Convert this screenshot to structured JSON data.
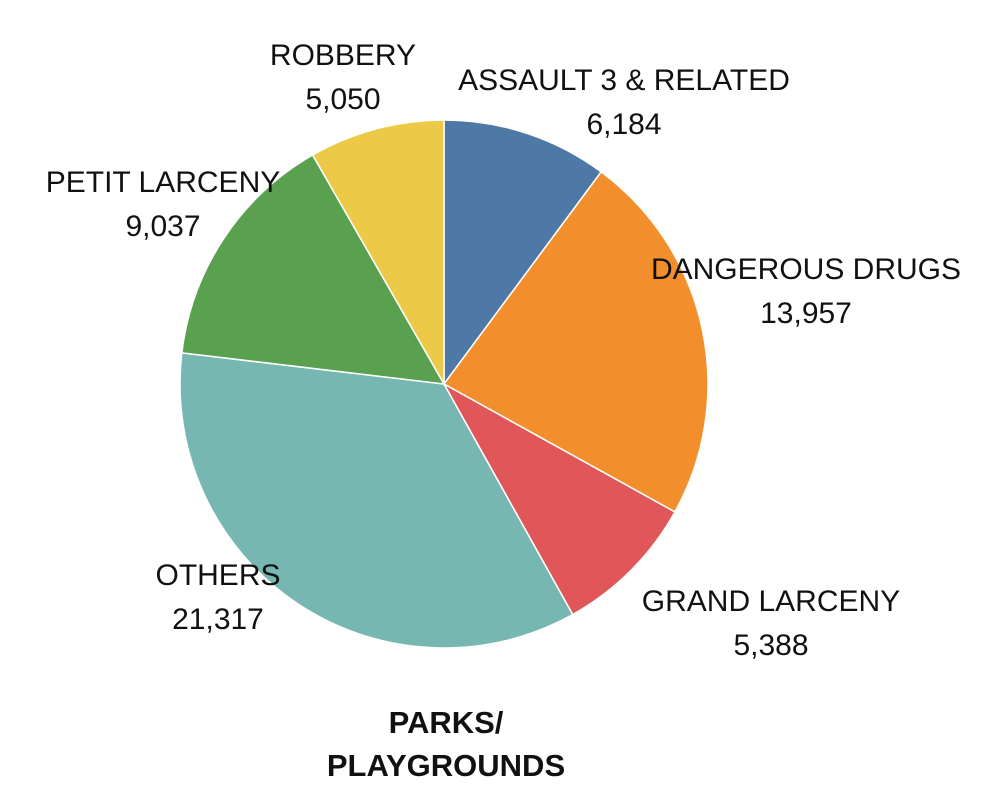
{
  "chart_data": {
    "type": "pie",
    "title_lines": [
      "PARKS/",
      "PLAYGROUNDS"
    ],
    "start_angle_deg": 0,
    "direction": "clockwise",
    "slices": [
      {
        "label": "ASSAULT 3 & RELATED",
        "value": 6184,
        "value_text": "6,184",
        "color": "#4e79a7"
      },
      {
        "label": "DANGEROUS DRUGS",
        "value": 13957,
        "value_text": "13,957",
        "color": "#f28e2b"
      },
      {
        "label": "GRAND LARCENY",
        "value": 5388,
        "value_text": "5,388",
        "color": "#e15759"
      },
      {
        "label": "OTHERS",
        "value": 21317,
        "value_text": "21,317",
        "color": "#76b7b2"
      },
      {
        "label": "PETIT LARCENY",
        "value": 9037,
        "value_text": "9,037",
        "color": "#59a14f"
      },
      {
        "label": "ROBBERY",
        "value": 5050,
        "value_text": "5,050",
        "color": "#edc948"
      }
    ]
  }
}
